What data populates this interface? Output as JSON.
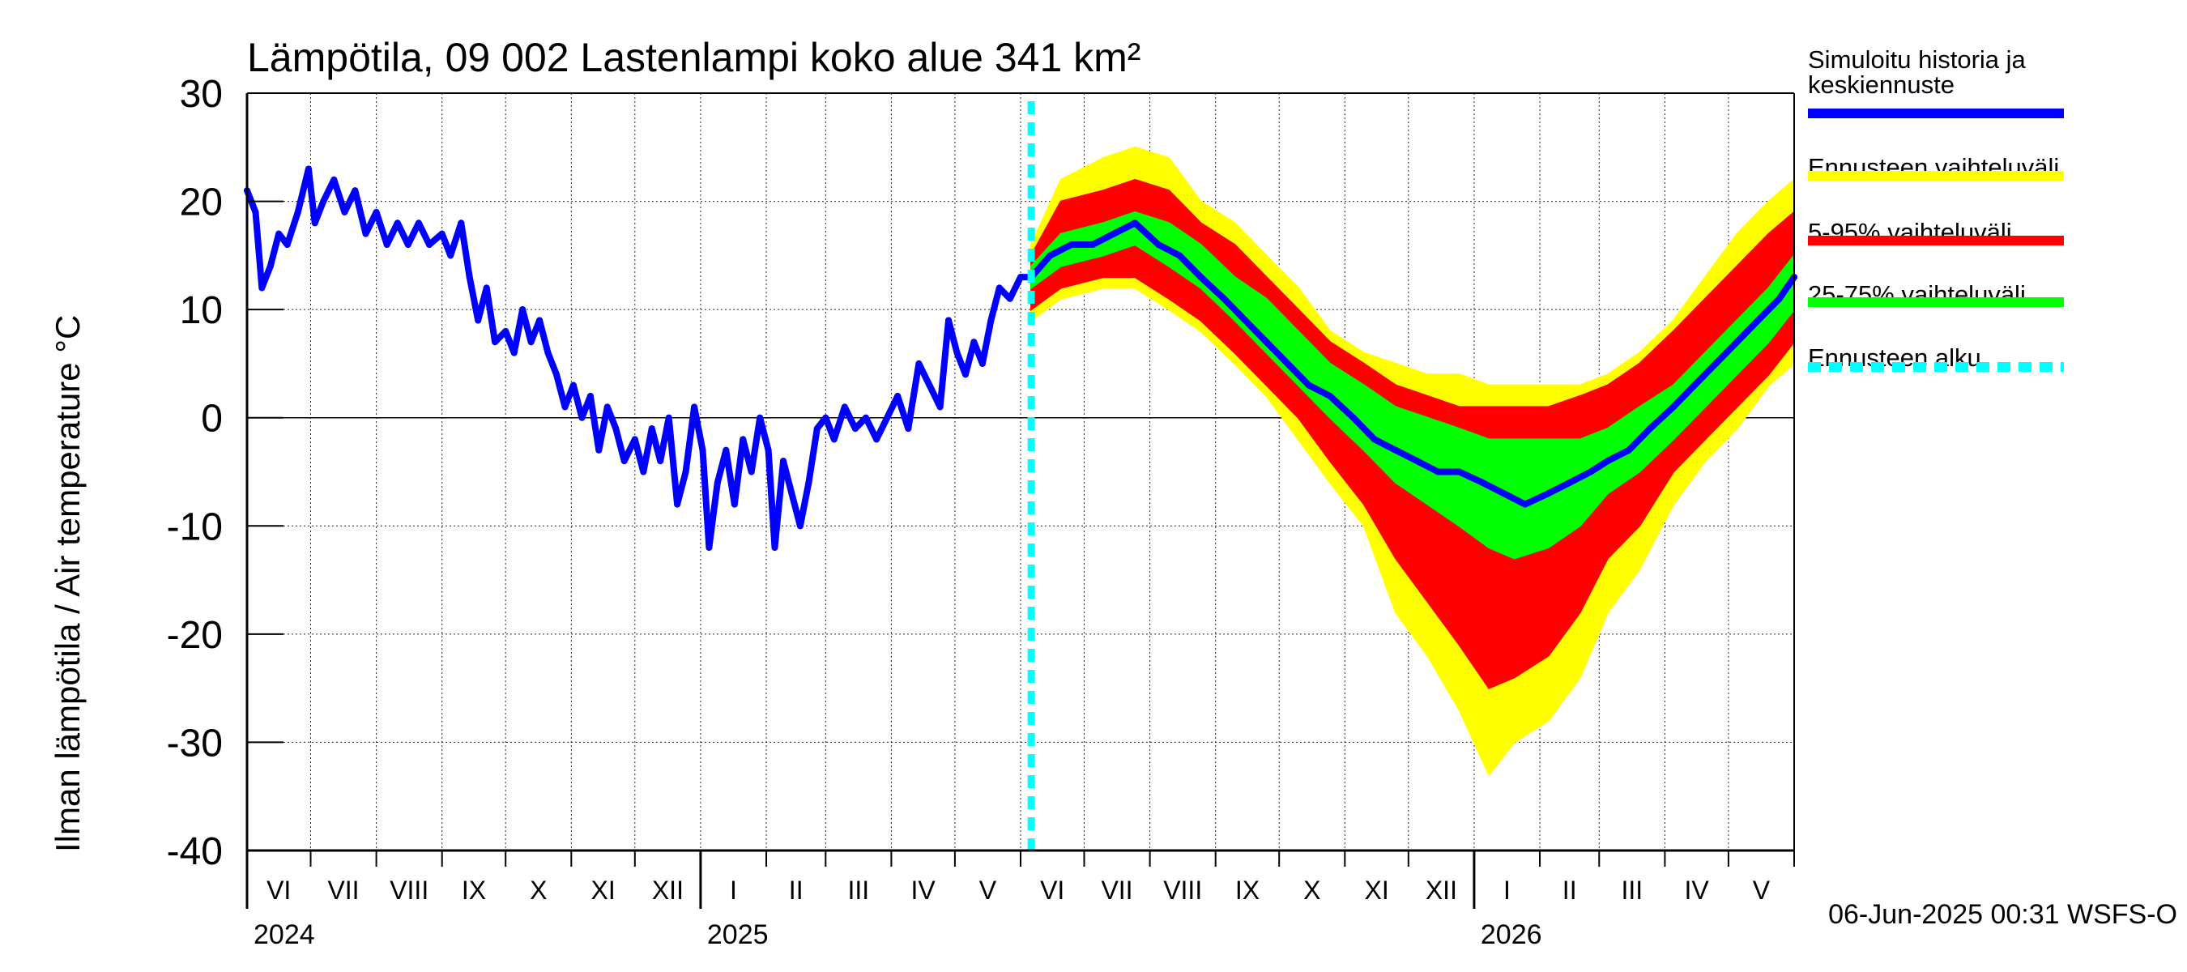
{
  "chart_data": {
    "type": "line",
    "title": "Lämpötila, 09 002 Lastenlampi koko alue 341 km²",
    "ylabel": "Ilman lämpötila / Air temperature   °C",
    "ylim": [
      -40,
      30
    ],
    "yticks": [
      30,
      20,
      10,
      0,
      -10,
      -20,
      -30,
      -40
    ],
    "ytick_labels": [
      "30",
      "20",
      "10",
      "0",
      "-10",
      "-20",
      "-30",
      "-40"
    ],
    "grid": true,
    "legend_position": "right",
    "xrange": [
      "2024-06-01",
      "2026-06-01"
    ],
    "month_labels": [
      {
        "month": "2024-06",
        "label": "VI"
      },
      {
        "month": "2024-07",
        "label": "VII"
      },
      {
        "month": "2024-08",
        "label": "VIII"
      },
      {
        "month": "2024-09",
        "label": "IX"
      },
      {
        "month": "2024-10",
        "label": "X"
      },
      {
        "month": "2024-11",
        "label": "XI"
      },
      {
        "month": "2024-12",
        "label": "XII"
      },
      {
        "month": "2025-01",
        "label": "I"
      },
      {
        "month": "2025-02",
        "label": "II"
      },
      {
        "month": "2025-03",
        "label": "III"
      },
      {
        "month": "2025-04",
        "label": "IV"
      },
      {
        "month": "2025-05",
        "label": "V"
      },
      {
        "month": "2025-06",
        "label": "VI"
      },
      {
        "month": "2025-07",
        "label": "VII"
      },
      {
        "month": "2025-08",
        "label": "VIII"
      },
      {
        "month": "2025-09",
        "label": "IX"
      },
      {
        "month": "2025-10",
        "label": "X"
      },
      {
        "month": "2025-11",
        "label": "XI"
      },
      {
        "month": "2025-12",
        "label": "XII"
      },
      {
        "month": "2026-01",
        "label": "I"
      },
      {
        "month": "2026-02",
        "label": "II"
      },
      {
        "month": "2026-03",
        "label": "III"
      },
      {
        "month": "2026-04",
        "label": "IV"
      },
      {
        "month": "2026-05",
        "label": "V"
      }
    ],
    "year_labels": [
      {
        "date": "2024-06-01",
        "label": "2024"
      },
      {
        "date": "2025-01-01",
        "label": "2025"
      },
      {
        "date": "2026-01-01",
        "label": "2026"
      }
    ],
    "forecast_start": "2025-06-06",
    "series": [
      {
        "name": "Simuloitu historia ja keskiennuste",
        "color": "#0000ff",
        "kind": "line",
        "points": [
          [
            "2024-06-01",
            21
          ],
          [
            "2024-06-05",
            19
          ],
          [
            "2024-06-08",
            12
          ],
          [
            "2024-06-12",
            14
          ],
          [
            "2024-06-16",
            17
          ],
          [
            "2024-06-20",
            16
          ],
          [
            "2024-06-25",
            19
          ],
          [
            "2024-06-30",
            23
          ],
          [
            "2024-07-03",
            18
          ],
          [
            "2024-07-07",
            20
          ],
          [
            "2024-07-12",
            22
          ],
          [
            "2024-07-17",
            19
          ],
          [
            "2024-07-22",
            21
          ],
          [
            "2024-07-27",
            17
          ],
          [
            "2024-08-01",
            19
          ],
          [
            "2024-08-06",
            16
          ],
          [
            "2024-08-11",
            18
          ],
          [
            "2024-08-16",
            16
          ],
          [
            "2024-08-21",
            18
          ],
          [
            "2024-08-26",
            16
          ],
          [
            "2024-09-01",
            17
          ],
          [
            "2024-09-05",
            15
          ],
          [
            "2024-09-10",
            18
          ],
          [
            "2024-09-14",
            13
          ],
          [
            "2024-09-18",
            9
          ],
          [
            "2024-09-22",
            12
          ],
          [
            "2024-09-26",
            7
          ],
          [
            "2024-10-01",
            8
          ],
          [
            "2024-10-05",
            6
          ],
          [
            "2024-10-09",
            10
          ],
          [
            "2024-10-13",
            7
          ],
          [
            "2024-10-17",
            9
          ],
          [
            "2024-10-21",
            6
          ],
          [
            "2024-10-25",
            4
          ],
          [
            "2024-10-29",
            1
          ],
          [
            "2024-11-02",
            3
          ],
          [
            "2024-11-06",
            0
          ],
          [
            "2024-11-10",
            2
          ],
          [
            "2024-11-14",
            -3
          ],
          [
            "2024-11-18",
            1
          ],
          [
            "2024-11-22",
            -1
          ],
          [
            "2024-11-26",
            -4
          ],
          [
            "2024-12-01",
            -2
          ],
          [
            "2024-12-05",
            -5
          ],
          [
            "2024-12-09",
            -1
          ],
          [
            "2024-12-13",
            -4
          ],
          [
            "2024-12-17",
            0
          ],
          [
            "2024-12-21",
            -8
          ],
          [
            "2024-12-25",
            -5
          ],
          [
            "2024-12-29",
            1
          ],
          [
            "2025-01-02",
            -3
          ],
          [
            "2025-01-05",
            -12
          ],
          [
            "2025-01-09",
            -6
          ],
          [
            "2025-01-13",
            -3
          ],
          [
            "2025-01-17",
            -8
          ],
          [
            "2025-01-21",
            -2
          ],
          [
            "2025-01-25",
            -5
          ],
          [
            "2025-01-29",
            0
          ],
          [
            "2025-02-02",
            -3
          ],
          [
            "2025-02-05",
            -12
          ],
          [
            "2025-02-09",
            -4
          ],
          [
            "2025-02-13",
            -7
          ],
          [
            "2025-02-17",
            -10
          ],
          [
            "2025-02-21",
            -6
          ],
          [
            "2025-02-25",
            -1
          ],
          [
            "2025-03-01",
            0
          ],
          [
            "2025-03-05",
            -2
          ],
          [
            "2025-03-10",
            1
          ],
          [
            "2025-03-15",
            -1
          ],
          [
            "2025-03-20",
            0
          ],
          [
            "2025-03-25",
            -2
          ],
          [
            "2025-03-30",
            0
          ],
          [
            "2025-04-04",
            2
          ],
          [
            "2025-04-09",
            -1
          ],
          [
            "2025-04-14",
            5
          ],
          [
            "2025-04-19",
            3
          ],
          [
            "2025-04-24",
            1
          ],
          [
            "2025-04-28",
            9
          ],
          [
            "2025-05-02",
            6
          ],
          [
            "2025-05-06",
            4
          ],
          [
            "2025-05-10",
            7
          ],
          [
            "2025-05-14",
            5
          ],
          [
            "2025-05-18",
            9
          ],
          [
            "2025-05-22",
            12
          ],
          [
            "2025-05-27",
            11
          ],
          [
            "2025-06-01",
            13
          ],
          [
            "2025-06-06",
            13
          ],
          [
            "2025-06-15",
            15
          ],
          [
            "2025-06-25",
            16
          ],
          [
            "2025-07-05",
            16
          ],
          [
            "2025-07-15",
            17
          ],
          [
            "2025-07-25",
            18
          ],
          [
            "2025-08-05",
            16
          ],
          [
            "2025-08-15",
            15
          ],
          [
            "2025-08-25",
            13
          ],
          [
            "2025-09-05",
            11
          ],
          [
            "2025-09-15",
            9
          ],
          [
            "2025-09-25",
            7
          ],
          [
            "2025-10-05",
            5
          ],
          [
            "2025-10-15",
            3
          ],
          [
            "2025-10-25",
            2
          ],
          [
            "2025-11-05",
            0
          ],
          [
            "2025-11-15",
            -2
          ],
          [
            "2025-11-25",
            -3
          ],
          [
            "2025-12-05",
            -4
          ],
          [
            "2025-12-15",
            -5
          ],
          [
            "2025-12-25",
            -5
          ],
          [
            "2026-01-05",
            -6
          ],
          [
            "2026-01-15",
            -7
          ],
          [
            "2026-01-25",
            -8
          ],
          [
            "2026-02-05",
            -7
          ],
          [
            "2026-02-15",
            -6
          ],
          [
            "2026-02-25",
            -5
          ],
          [
            "2026-03-05",
            -4
          ],
          [
            "2026-03-15",
            -3
          ],
          [
            "2026-03-25",
            -1
          ],
          [
            "2026-04-05",
            1
          ],
          [
            "2026-04-15",
            3
          ],
          [
            "2026-04-25",
            5
          ],
          [
            "2026-05-05",
            7
          ],
          [
            "2026-05-15",
            9
          ],
          [
            "2026-05-25",
            11
          ],
          [
            "2026-06-01",
            13
          ]
        ]
      },
      {
        "name": "Ennusteen vaihteluväli",
        "color": "#ffff00",
        "kind": "band",
        "points": [
          [
            "2025-06-06",
            9,
            16
          ],
          [
            "2025-06-20",
            11,
            22
          ],
          [
            "2025-07-10",
            12,
            24
          ],
          [
            "2025-07-25",
            12,
            25
          ],
          [
            "2025-08-10",
            10,
            24
          ],
          [
            "2025-08-25",
            8,
            20
          ],
          [
            "2025-09-10",
            5,
            18
          ],
          [
            "2025-09-25",
            2,
            15
          ],
          [
            "2025-10-10",
            -2,
            12
          ],
          [
            "2025-10-25",
            -6,
            8
          ],
          [
            "2025-11-10",
            -10,
            6
          ],
          [
            "2025-11-25",
            -18,
            5
          ],
          [
            "2025-12-10",
            -22,
            4
          ],
          [
            "2025-12-25",
            -27,
            4
          ],
          [
            "2026-01-08",
            -33,
            3
          ],
          [
            "2026-01-20",
            -30,
            3
          ],
          [
            "2026-02-05",
            -28,
            3
          ],
          [
            "2026-02-20",
            -24,
            3
          ],
          [
            "2026-03-05",
            -18,
            4
          ],
          [
            "2026-03-20",
            -14,
            6
          ],
          [
            "2026-04-05",
            -8,
            9
          ],
          [
            "2026-04-20",
            -4,
            13
          ],
          [
            "2026-05-05",
            -1,
            17
          ],
          [
            "2026-05-20",
            3,
            20
          ],
          [
            "2026-06-01",
            5,
            22
          ]
        ]
      },
      {
        "name": "5-95% vaihteluväli",
        "color": "#ff0000",
        "kind": "band",
        "points": [
          [
            "2025-06-06",
            10,
            15
          ],
          [
            "2025-06-20",
            12,
            20
          ],
          [
            "2025-07-10",
            13,
            21
          ],
          [
            "2025-07-25",
            13,
            22
          ],
          [
            "2025-08-10",
            11,
            21
          ],
          [
            "2025-08-25",
            9,
            18
          ],
          [
            "2025-09-10",
            6,
            16
          ],
          [
            "2025-09-25",
            3,
            13
          ],
          [
            "2025-10-10",
            0,
            10
          ],
          [
            "2025-10-25",
            -4,
            7
          ],
          [
            "2025-11-10",
            -8,
            5
          ],
          [
            "2025-11-25",
            -13,
            3
          ],
          [
            "2025-12-10",
            -17,
            2
          ],
          [
            "2025-12-25",
            -21,
            1
          ],
          [
            "2026-01-08",
            -25,
            1
          ],
          [
            "2026-01-20",
            -24,
            1
          ],
          [
            "2026-02-05",
            -22,
            1
          ],
          [
            "2026-02-20",
            -18,
            2
          ],
          [
            "2026-03-05",
            -13,
            3
          ],
          [
            "2026-03-20",
            -10,
            5
          ],
          [
            "2026-04-05",
            -5,
            8
          ],
          [
            "2026-04-20",
            -2,
            11
          ],
          [
            "2026-05-05",
            1,
            14
          ],
          [
            "2026-05-20",
            4,
            17
          ],
          [
            "2026-06-01",
            7,
            19
          ]
        ]
      },
      {
        "name": "25-75% vaihteluväli",
        "color": "#00ff00",
        "kind": "band",
        "points": [
          [
            "2025-06-06",
            12,
            14
          ],
          [
            "2025-06-20",
            14,
            17
          ],
          [
            "2025-07-10",
            15,
            18
          ],
          [
            "2025-07-25",
            16,
            19
          ],
          [
            "2025-08-10",
            14,
            18
          ],
          [
            "2025-08-25",
            12,
            16
          ],
          [
            "2025-09-10",
            9,
            13
          ],
          [
            "2025-09-25",
            6,
            11
          ],
          [
            "2025-10-10",
            3,
            8
          ],
          [
            "2025-10-25",
            0,
            5
          ],
          [
            "2025-11-10",
            -3,
            3
          ],
          [
            "2025-11-25",
            -6,
            1
          ],
          [
            "2025-12-10",
            -8,
            0
          ],
          [
            "2025-12-25",
            -10,
            -1
          ],
          [
            "2026-01-08",
            -12,
            -2
          ],
          [
            "2026-01-20",
            -13,
            -2
          ],
          [
            "2026-02-05",
            -12,
            -2
          ],
          [
            "2026-02-20",
            -10,
            -2
          ],
          [
            "2026-03-05",
            -7,
            -1
          ],
          [
            "2026-03-20",
            -5,
            1
          ],
          [
            "2026-04-05",
            -2,
            3
          ],
          [
            "2026-04-20",
            1,
            6
          ],
          [
            "2026-05-05",
            4,
            9
          ],
          [
            "2026-05-20",
            7,
            12
          ],
          [
            "2026-06-01",
            10,
            15
          ]
        ]
      },
      {
        "name": "Ennusteen alku",
        "color": "#00ffff",
        "kind": "vline",
        "date": "2025-06-06"
      }
    ]
  },
  "legend": {
    "items": [
      {
        "label": "Simuloitu historia ja keskiennuste",
        "color": "#0000ff",
        "style": "solid"
      },
      {
        "label": "Ennusteen vaihteluväli",
        "color": "#ffff00",
        "style": "solid"
      },
      {
        "label": "5-95% vaihteluväli",
        "color": "#ff0000",
        "style": "solid"
      },
      {
        "label": "25-75% vaihteluväli",
        "color": "#00ff00",
        "style": "solid"
      },
      {
        "label": "Ennusteen alku",
        "color": "#00ffff",
        "style": "dashed"
      }
    ]
  },
  "footer": {
    "timestamp": "06-Jun-2025 00:31 WSFS-O"
  }
}
